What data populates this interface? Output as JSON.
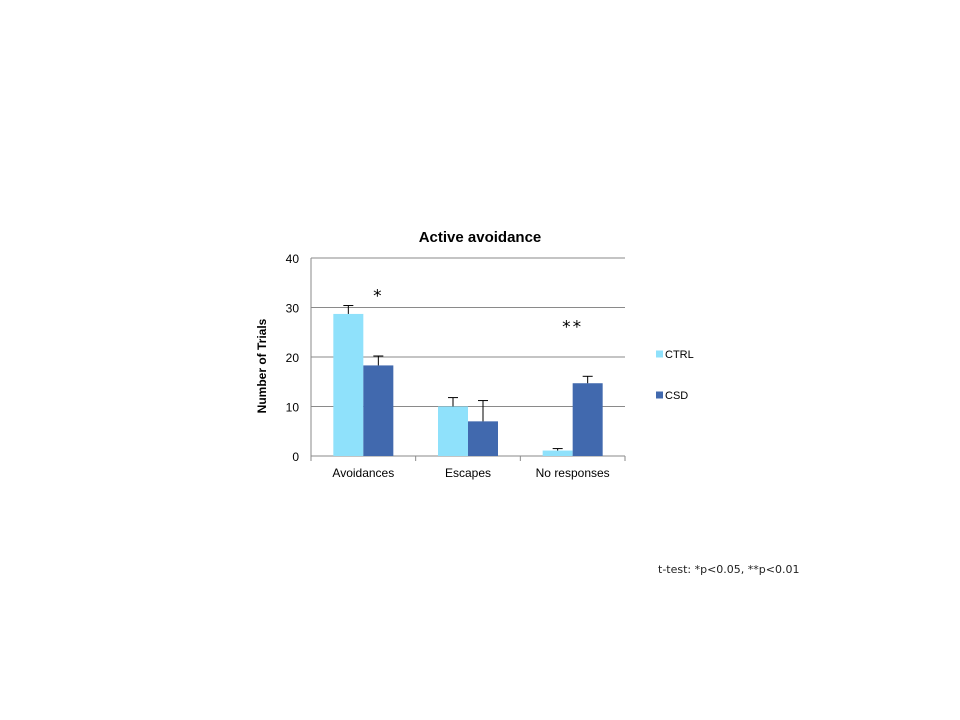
{
  "chart_data": {
    "type": "bar",
    "title": "Active avoidance",
    "xlabel": "",
    "ylabel": "Number of Trials",
    "categories": [
      "Avoidances",
      "Escapes",
      "No responses"
    ],
    "ylim": [
      0,
      40
    ],
    "yticks": [
      0,
      10,
      20,
      30,
      40
    ],
    "grid": true,
    "legend_position": "right",
    "series": [
      {
        "name": "CTRL",
        "color": "#8FE1FB",
        "values": [
          28.7,
          10.0,
          1.1
        ],
        "errors": [
          1.7,
          1.8,
          0.4
        ]
      },
      {
        "name": "CSD",
        "color": "#4169AE",
        "values": [
          18.3,
          7.0,
          14.7
        ],
        "errors": [
          1.9,
          4.2,
          1.4
        ]
      }
    ],
    "annotations": [
      {
        "category": "Avoidances",
        "text": "*"
      },
      {
        "category": "No responses",
        "text": "**"
      }
    ]
  },
  "footnote": "t-test: *p<0.05, **p<0.01"
}
